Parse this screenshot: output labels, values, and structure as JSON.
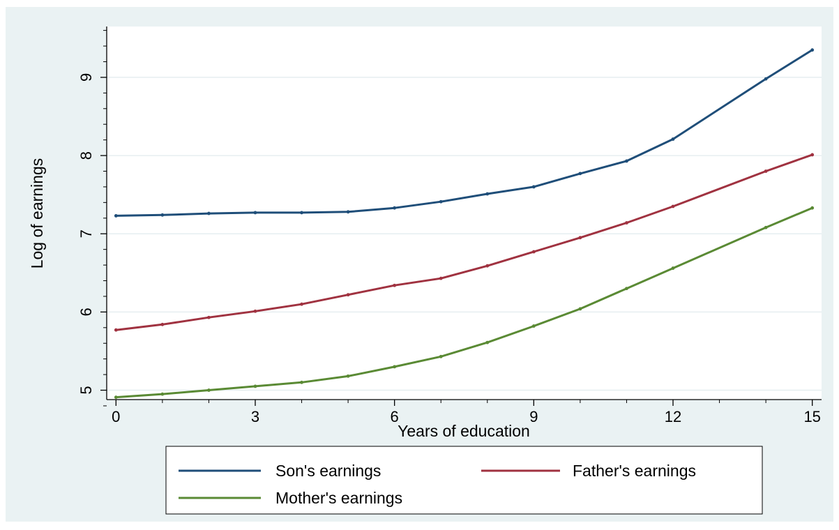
{
  "chart_data": {
    "type": "line",
    "title": "",
    "xlabel": "Years of education",
    "ylabel": "Log of earnings",
    "xlim": [
      -0.2,
      15.2
    ],
    "ylim": [
      4.88,
      9.65
    ],
    "xticks": [
      0,
      3,
      6,
      9,
      12,
      15
    ],
    "xminor_ticks": [
      1,
      2,
      4,
      5,
      7,
      8,
      10,
      11,
      13,
      14
    ],
    "yticks": [
      5,
      6,
      7,
      8,
      9
    ],
    "yminor_ticks": [
      4.8,
      5.2,
      5.4,
      5.6,
      5.8,
      6.2,
      6.4,
      6.6,
      6.8,
      7.2,
      7.4,
      7.6,
      7.8,
      8.2,
      8.4,
      8.6,
      8.8,
      9.2,
      9.4,
      9.6
    ],
    "grid": true,
    "legend_position": "bottom",
    "x": [
      0,
      1,
      2,
      3,
      4,
      5,
      6,
      7,
      8,
      9,
      10,
      11,
      12,
      14,
      15
    ],
    "series": [
      {
        "name": "Son's earnings",
        "color": "#1f4e79",
        "values": [
          7.23,
          7.24,
          7.26,
          7.27,
          7.27,
          7.28,
          7.33,
          7.41,
          7.51,
          7.6,
          7.77,
          7.93,
          8.21,
          8.98,
          9.35
        ]
      },
      {
        "name": "Father's earnings",
        "color": "#a03240",
        "values": [
          5.77,
          5.84,
          5.93,
          6.01,
          6.1,
          6.22,
          6.34,
          6.43,
          6.59,
          6.77,
          6.95,
          7.14,
          7.35,
          7.8,
          8.01
        ]
      },
      {
        "name": "Mother's earnings",
        "color": "#5a8a34",
        "values": [
          4.91,
          4.95,
          5.0,
          5.05,
          5.1,
          5.18,
          5.3,
          5.43,
          5.61,
          5.82,
          6.04,
          6.3,
          6.56,
          7.08,
          7.33
        ]
      }
    ]
  }
}
